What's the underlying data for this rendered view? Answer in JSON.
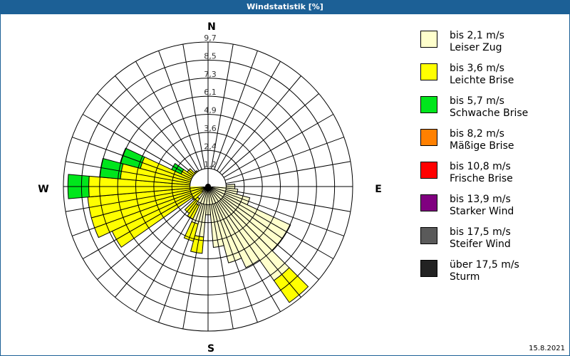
{
  "header": {
    "title": "Windstatistik [%]"
  },
  "compass": {
    "n": "N",
    "e": "E",
    "s": "S",
    "w": "W"
  },
  "footer": {
    "date": "15.8.2021"
  },
  "legend": [
    {
      "range": "bis 2,1 m/s",
      "name": "Leiser Zug",
      "color": "#ffffcc"
    },
    {
      "range": "bis 3,6 m/s",
      "name": "Leichte Brise",
      "color": "#ffff00"
    },
    {
      "range": "bis 5,7 m/s",
      "name": "Schwache Brise",
      "color": "#00e61c"
    },
    {
      "range": "bis 8,2 m/s",
      "name": "Mäßige Brise",
      "color": "#ff8000"
    },
    {
      "range": "bis 10,8 m/s",
      "name": "Frische Brise",
      "color": "#ff0000"
    },
    {
      "range": "bis 13,9 m/s",
      "name": "Starker Wind",
      "color": "#800080"
    },
    {
      "range": "bis 17,5 m/s",
      "name": "Steifer Wind",
      "color": "#5a5a5a"
    },
    {
      "range": "über 17,5 m/s",
      "name": "Sturm",
      "color": "#222222"
    }
  ],
  "chart_data": {
    "type": "polar-stacked-bar",
    "title": "Windstatistik [%]",
    "date": "15.8.2021",
    "radial_ticks": [
      "1,2",
      "2,4",
      "3,6",
      "4,9",
      "6,1",
      "7,3",
      "8,5",
      "9,7"
    ],
    "radial_max": 9.7,
    "sector_width_deg": 10,
    "directions_deg": [
      0,
      10,
      20,
      30,
      40,
      50,
      60,
      70,
      80,
      90,
      100,
      110,
      120,
      130,
      140,
      150,
      160,
      170,
      180,
      190,
      200,
      210,
      220,
      230,
      240,
      250,
      260,
      270,
      280,
      290,
      300,
      310,
      320,
      330,
      340,
      350
    ],
    "series": [
      {
        "name": "bis 2,1 m/s Leiser Zug",
        "values": [
          0.3,
          0.3,
          0.3,
          0.3,
          0.3,
          0.3,
          0.3,
          0.3,
          0.5,
          1.8,
          2.0,
          2.9,
          6.1,
          6.1,
          7.7,
          6.0,
          5.3,
          4.1,
          1.9,
          3.4,
          2.6,
          1.4,
          1.0,
          0.5,
          0.3,
          0.3,
          0.3,
          0.2,
          0.2,
          0.2,
          0.2,
          0.3,
          0.3,
          0.3,
          0.3,
          0.3
        ]
      },
      {
        "name": "bis 3,6 m/s Leichte Brise",
        "values": [
          0,
          0,
          0,
          0,
          0,
          0,
          0,
          0,
          0,
          0,
          0,
          0,
          0,
          0,
          1.8,
          0,
          0,
          0,
          0,
          1.1,
          1.2,
          1.0,
          1.2,
          0.8,
          6.8,
          7.8,
          7.8,
          7.8,
          5.7,
          4.5,
          1.8,
          1.4,
          1.0,
          0.5,
          0.3,
          0
        ]
      },
      {
        "name": "bis 5,7 m/s Schwache Brise",
        "values": [
          0,
          0,
          0,
          0,
          0,
          0,
          0,
          0,
          0,
          0,
          0,
          0,
          0,
          0,
          0,
          0,
          0,
          0,
          0,
          0,
          0,
          0,
          0,
          0,
          0,
          0,
          0,
          1.4,
          1.4,
          1.4,
          0.7,
          0,
          0,
          0,
          0,
          0
        ]
      },
      {
        "name": "bis 8,2 m/s Mäßige Brise",
        "values": [
          0,
          0,
          0,
          0,
          0,
          0,
          0,
          0,
          0,
          0,
          0,
          0,
          0,
          0,
          0,
          0,
          0,
          0,
          0,
          0,
          0,
          0,
          0,
          0,
          0,
          0,
          0,
          0,
          0,
          0,
          0,
          0,
          0,
          0,
          0,
          0
        ]
      }
    ],
    "legend_position": "right"
  }
}
